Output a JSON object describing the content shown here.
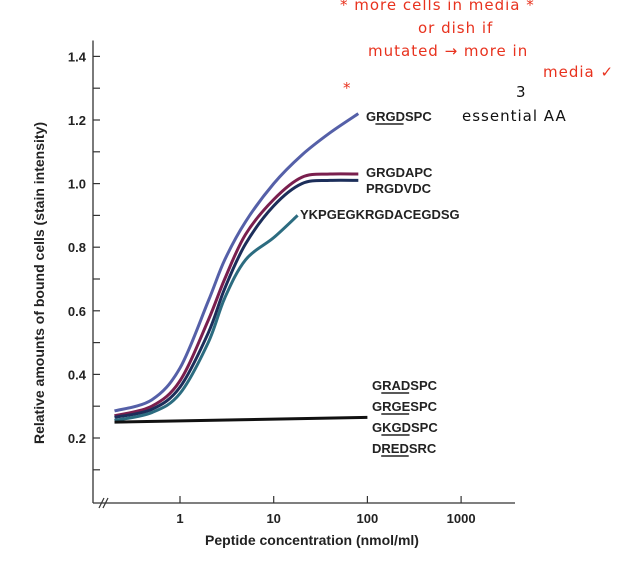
{
  "chart_data": {
    "type": "line",
    "xlabel": "Peptide concentration (nmol/ml)",
    "ylabel": "Relative amounts of bound cells (stain intensity)",
    "xscale": "log",
    "xlim": [
      0.12,
      2000
    ],
    "ylim": [
      0,
      1.45
    ],
    "xticks": [
      {
        "v": 1,
        "label": "1"
      },
      {
        "v": 10,
        "label": "10"
      },
      {
        "v": 100,
        "label": "100"
      },
      {
        "v": 1000,
        "label": "1000"
      }
    ],
    "yticks": [
      {
        "v": 0.2,
        "label": "0.2"
      },
      {
        "v": 0.4,
        "label": "0.4"
      },
      {
        "v": 0.6,
        "label": "0.6"
      },
      {
        "v": 0.8,
        "label": "0.8"
      },
      {
        "v": 1.0,
        "label": "1.0"
      },
      {
        "v": 1.2,
        "label": "1.2"
      },
      {
        "v": 1.4,
        "label": "1.4"
      }
    ],
    "grid": false,
    "series": [
      {
        "name": "GRGDSPC",
        "underlined": "RGD",
        "color": "#5560a8",
        "x": [
          0.2,
          0.5,
          1,
          2,
          3,
          5,
          10,
          20,
          40,
          80
        ],
        "y": [
          0.285,
          0.32,
          0.42,
          0.63,
          0.76,
          0.88,
          1.0,
          1.09,
          1.16,
          1.22
        ]
      },
      {
        "name": "GRGDAPC",
        "underlined": "",
        "color": "#7a1f4e",
        "x": [
          0.2,
          0.5,
          1,
          2,
          3,
          5,
          10,
          20,
          40,
          80
        ],
        "y": [
          0.27,
          0.3,
          0.38,
          0.57,
          0.7,
          0.84,
          0.95,
          1.02,
          1.03,
          1.03
        ]
      },
      {
        "name": "PRGDVDC",
        "underlined": "",
        "color": "#1c2e5a",
        "x": [
          0.2,
          0.5,
          1,
          2,
          3,
          5,
          10,
          20,
          40,
          80
        ],
        "y": [
          0.265,
          0.29,
          0.36,
          0.53,
          0.67,
          0.81,
          0.93,
          1.0,
          1.01,
          1.01
        ]
      },
      {
        "name": "YKPGEGKRGDACEGDSG",
        "underlined": "",
        "color": "#2c6c80",
        "x": [
          0.2,
          0.5,
          1,
          2,
          3,
          5,
          10,
          18
        ],
        "y": [
          0.255,
          0.28,
          0.34,
          0.5,
          0.64,
          0.76,
          0.83,
          0.9
        ]
      },
      {
        "name": "GRADSPC / GRGESPC / GKGDSPC / DREDSRC",
        "color": "#111111",
        "x": [
          0.2,
          100
        ],
        "y": [
          0.25,
          0.265
        ]
      }
    ],
    "control_labels": [
      {
        "text": "GRADSPC",
        "underlined": "RAD"
      },
      {
        "text": "GRGESPC",
        "underlined": "RGE"
      },
      {
        "text": "GKGDSPC",
        "underlined": "KGD"
      },
      {
        "text": "DREDSRC",
        "underlined": "RED"
      }
    ],
    "annotations": {
      "red": [
        "* more cells in media *",
        "or dish if",
        "mutated → more in",
        "media ✓",
        "*"
      ],
      "black": [
        "3",
        "essential AA"
      ]
    }
  }
}
